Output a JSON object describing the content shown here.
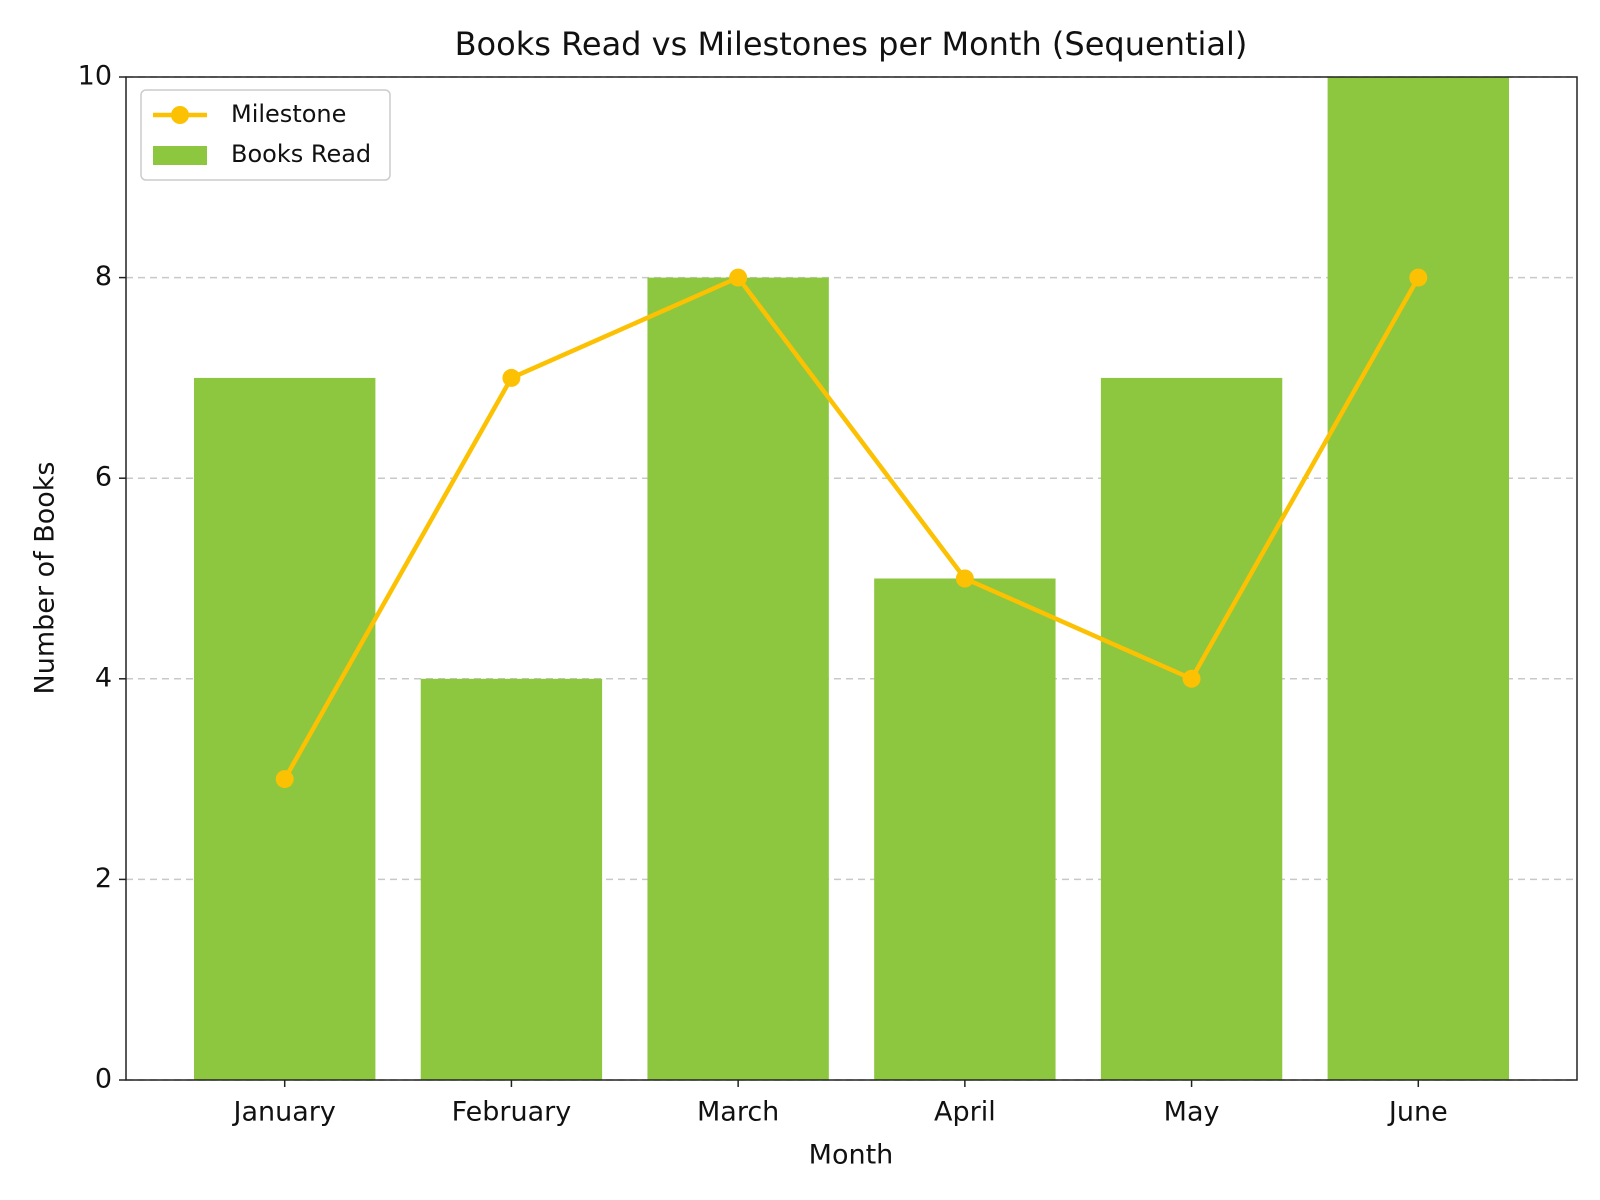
{
  "chart_data": {
    "type": "bar",
    "title": "Books Read vs Milestones per Month (Sequential)",
    "x_label": "Month",
    "y_label": "Number of Books",
    "categories": [
      "January",
      "February",
      "March",
      "April",
      "May",
      "June"
    ],
    "series": [
      {
        "name": "Books Read",
        "type": "bar",
        "color": "#8dc63f",
        "values": [
          7,
          4,
          8,
          5,
          7,
          10
        ]
      },
      {
        "name": "Milestone",
        "type": "line",
        "color": "#fbc102",
        "values": [
          3,
          7,
          8,
          5,
          4,
          8
        ]
      }
    ],
    "ylim": [
      0,
      10
    ],
    "yticks": [
      0,
      2,
      4,
      6,
      8,
      10
    ],
    "grid": true,
    "legend": "upper left"
  }
}
